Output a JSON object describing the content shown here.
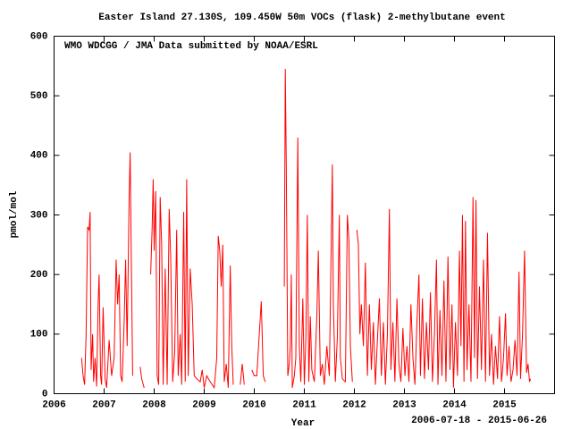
{
  "chart_data": {
    "type": "line",
    "title": "Easter Island 27.130S, 109.450W 50m    VOCs (flask) 2-methylbutane event",
    "annotation": "WMO WDCGG / JMA   Data submitted by NOAA/ESRL",
    "date_range": "2006-07-18 - 2015-06-26",
    "xlabel": "Year",
    "ylabel": "pmol/mol",
    "color": "#ff0000",
    "xlim": [
      2006,
      2016
    ],
    "xticks": [
      2006,
      2007,
      2008,
      2009,
      2010,
      2011,
      2012,
      2013,
      2014,
      2015
    ],
    "ylim": [
      0,
      600
    ],
    "yticks": [
      0,
      100,
      200,
      300,
      400,
      500,
      600
    ],
    "grid": false,
    "x": [
      2006.55,
      2006.58,
      2006.61,
      2006.64,
      2006.67,
      2006.7,
      2006.72,
      2006.74,
      2006.77,
      2006.79,
      2006.82,
      2006.85,
      2006.88,
      2006.9,
      2006.93,
      2006.95,
      2006.98,
      2007.02,
      2007.05,
      2007.1,
      2007.15,
      2007.2,
      2007.24,
      2007.27,
      2007.3,
      2007.33,
      2007.36,
      2007.4,
      2007.43,
      2007.46,
      2007.5,
      2007.52,
      2007.54,
      2007.57,
      null,
      2007.72,
      2007.75,
      2007.8,
      null,
      2007.93,
      2007.96,
      2007.98,
      2008.0,
      2008.03,
      2008.06,
      2008.09,
      2008.12,
      2008.15,
      2008.18,
      2008.22,
      2008.26,
      2008.3,
      2008.33,
      2008.37,
      2008.41,
      2008.45,
      2008.48,
      2008.52,
      2008.55,
      2008.59,
      2008.62,
      2008.65,
      2008.68,
      2008.72,
      2008.76,
      2008.8,
      2008.85,
      2008.92,
      2008.96,
      2009.0,
      2009.05,
      2009.12,
      2009.2,
      2009.25,
      2009.28,
      2009.31,
      2009.34,
      2009.37,
      2009.4,
      2009.44,
      2009.48,
      2009.52,
      2009.55,
      2009.58,
      null,
      2009.72,
      2009.76,
      2009.8,
      null,
      2009.95,
      2010.0,
      2010.05,
      2010.1,
      2010.14,
      2010.18,
      2010.22,
      null,
      2010.6,
      2010.62,
      2010.64,
      2010.67,
      2010.7,
      2010.72,
      2010.74,
      2010.76,
      2010.8,
      2010.83,
      2010.87,
      2010.9,
      2010.93,
      2010.97,
      2011.0,
      2011.03,
      2011.06,
      2011.09,
      2011.12,
      2011.15,
      2011.2,
      2011.25,
      2011.28,
      2011.32,
      2011.36,
      2011.4,
      2011.45,
      2011.5,
      2011.56,
      2011.58,
      2011.62,
      2011.66,
      2011.7,
      2011.72,
      2011.76,
      2011.82,
      2011.86,
      2011.89,
      2011.92,
      2011.96,
      null,
      2012.05,
      2012.08,
      2012.11,
      2012.14,
      2012.18,
      2012.22,
      2012.26,
      2012.3,
      2012.34,
      2012.38,
      2012.42,
      2012.46,
      2012.5,
      2012.54,
      2012.58,
      2012.62,
      2012.66,
      2012.7,
      2012.73,
      2012.77,
      2012.81,
      2012.85,
      2012.89,
      2012.93,
      2012.97,
      2013.01,
      2013.05,
      2013.09,
      2013.13,
      2013.17,
      2013.21,
      2013.25,
      2013.29,
      2013.32,
      2013.36,
      2013.4,
      2013.44,
      2013.48,
      2013.52,
      2013.56,
      2013.6,
      2013.64,
      2013.67,
      2013.71,
      2013.75,
      2013.79,
      2013.83,
      2013.87,
      2013.91,
      2013.95,
      2013.98,
      2014.02,
      2014.06,
      2014.1,
      2014.13,
      2014.16,
      2014.19,
      2014.22,
      2014.25,
      2014.29,
      2014.33,
      2014.37,
      2014.4,
      2014.43,
      2014.46,
      2014.5,
      2014.54,
      2014.58,
      2014.62,
      2014.66,
      2014.7,
      2014.74,
      2014.78,
      2014.82,
      2014.86,
      2014.9,
      2014.94,
      2014.98,
      2015.02,
      2015.05,
      2015.09,
      2015.13,
      2015.17,
      2015.21,
      2015.25,
      2015.29,
      2015.32,
      2015.36,
      2015.4,
      2015.44,
      2015.47,
      2015.5,
      2015.52
    ],
    "values": [
      60,
      30,
      15,
      100,
      280,
      275,
      305,
      40,
      100,
      20,
      60,
      12,
      150,
      200,
      30,
      15,
      145,
      25,
      10,
      90,
      30,
      60,
      225,
      150,
      200,
      30,
      20,
      120,
      225,
      80,
      330,
      405,
      250,
      30,
      null,
      45,
      25,
      10,
      null,
      200,
      280,
      360,
      240,
      340,
      30,
      15,
      330,
      250,
      15,
      210,
      15,
      310,
      230,
      20,
      70,
      275,
      30,
      100,
      15,
      305,
      20,
      360,
      30,
      210,
      150,
      30,
      25,
      20,
      40,
      10,
      30,
      20,
      10,
      60,
      265,
      240,
      180,
      250,
      20,
      50,
      10,
      215,
      80,
      15,
      null,
      15,
      50,
      15,
      null,
      40,
      30,
      30,
      100,
      155,
      30,
      20,
      null,
      180,
      545,
      380,
      30,
      50,
      80,
      200,
      10,
      30,
      60,
      430,
      80,
      20,
      160,
      15,
      90,
      300,
      20,
      130,
      40,
      20,
      130,
      240,
      30,
      50,
      15,
      80,
      30,
      385,
      150,
      20,
      95,
      300,
      60,
      25,
      20,
      300,
      260,
      80,
      20,
      null,
      275,
      250,
      100,
      150,
      80,
      220,
      30,
      150,
      40,
      120,
      15,
      90,
      160,
      30,
      120,
      15,
      100,
      310,
      40,
      120,
      20,
      160,
      50,
      20,
      110,
      30,
      80,
      20,
      150,
      60,
      15,
      120,
      200,
      30,
      160,
      25,
      120,
      40,
      170,
      20,
      100,
      225,
      15,
      140,
      30,
      190,
      20,
      230,
      40,
      150,
      10,
      120,
      30,
      240,
      80,
      300,
      20,
      290,
      40,
      150,
      20,
      330,
      60,
      325,
      25,
      180,
      40,
      225,
      20,
      270,
      30,
      100,
      15,
      80,
      25,
      130,
      20,
      60,
      135,
      30,
      80,
      20,
      40,
      90,
      30,
      205,
      25,
      100,
      240,
      35,
      50,
      20,
      25
    ]
  }
}
